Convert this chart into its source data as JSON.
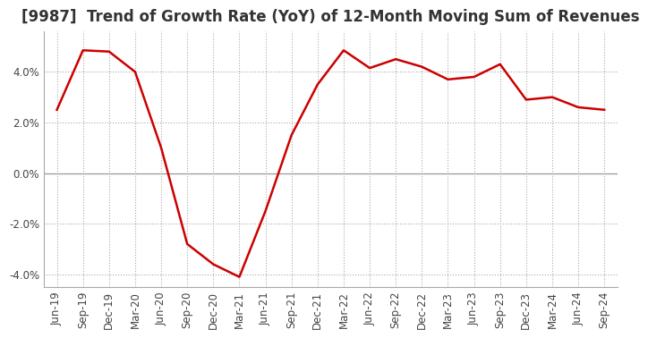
{
  "title": "[9987]  Trend of Growth Rate (YoY) of 12-Month Moving Sum of Revenues",
  "x_labels": [
    "Jun-19",
    "Sep-19",
    "Dec-19",
    "Mar-20",
    "Jun-20",
    "Sep-20",
    "Dec-20",
    "Mar-21",
    "Jun-21",
    "Sep-21",
    "Dec-21",
    "Mar-22",
    "Jun-22",
    "Sep-22",
    "Dec-22",
    "Mar-23",
    "Jun-23",
    "Sep-23",
    "Dec-23",
    "Mar-24",
    "Jun-24",
    "Sep-24"
  ],
  "y_values": [
    2.5,
    4.85,
    4.8,
    4.0,
    1.0,
    -2.8,
    -3.6,
    -4.1,
    -1.5,
    1.5,
    3.5,
    4.85,
    4.15,
    4.5,
    4.2,
    3.7,
    3.8,
    4.3,
    2.9,
    3.0,
    2.6,
    2.5
  ],
  "line_color": "#cc0000",
  "line_width": 1.8,
  "background_color": "#ffffff",
  "plot_bg_color": "#ffffff",
  "ylim": [
    -4.5,
    5.6
  ],
  "yticks": [
    -4.0,
    -2.0,
    0.0,
    2.0,
    4.0
  ],
  "grid_color": "#999999",
  "grid_dotted_color": "#aaaaaa",
  "title_fontsize": 12,
  "title_color": "#333333",
  "tick_fontsize": 8.5,
  "tick_color": "#444444",
  "spine_color": "#aaaaaa"
}
